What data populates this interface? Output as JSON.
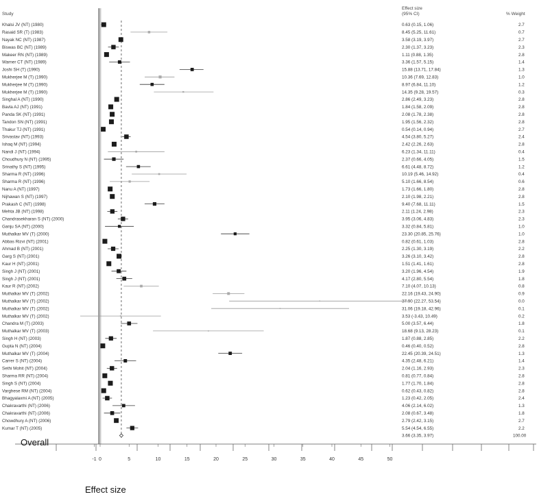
{
  "chart_data": {
    "type": "forest",
    "header": {
      "study": "Study",
      "effect": "Effect size",
      "ci": "(95% CI)",
      "weight": "% Weight"
    },
    "overall_label": "Overall",
    "xlabel": "Effect size",
    "xlim": [
      -1,
      51
    ],
    "xticks": [
      -1,
      0,
      5,
      10,
      15,
      20,
      25,
      30,
      35,
      40,
      45,
      50
    ],
    "reference_line": 0,
    "overall_line": 3.66,
    "studies": [
      {
        "name": "Khalsi JV (NT) (1980)",
        "est": 0.63,
        "lo": 0.15,
        "hi": 1.06,
        "ci": "0.63 (0.15, 1.06)",
        "w": "2.7"
      },
      {
        "name": "Rasaid SR (T) (1983)",
        "est": 8.45,
        "lo": 5.25,
        "hi": 11.61,
        "ci": "8.45 (5.25, 11.61)",
        "w": "0.7"
      },
      {
        "name": "Nayak NC (NT) (1987)",
        "est": 3.58,
        "lo": 3.19,
        "hi": 3.97,
        "ci": "3.58 (3.19, 3.97)",
        "w": "2.7"
      },
      {
        "name": "Biswas BC (NT) (1989)",
        "est": 2.3,
        "lo": 1.37,
        "hi": 3.23,
        "ci": "2.30 (1.37, 3.23)",
        "w": "2.3"
      },
      {
        "name": "Makeer RN (NT) (1989)",
        "est": 1.11,
        "lo": 0.88,
        "hi": 1.35,
        "ci": "1.11 (0.88, 1.35)",
        "w": "2.8"
      },
      {
        "name": "Warner CT (NT) (1989)",
        "est": 3.36,
        "lo": 1.57,
        "hi": 5.15,
        "ci": "3.36 (1.57, 5.15)",
        "w": "1.4"
      },
      {
        "name": "Joshi SH (T) (1990)",
        "est": 15.88,
        "lo": 13.71,
        "hi": 17.84,
        "ci": "15.88 (13.71, 17.84)",
        "w": "1.3"
      },
      {
        "name": "Mukherjee M (T) (1990)",
        "est": 10.36,
        "lo": 7.69,
        "hi": 12.83,
        "ci": "10.36 (7.69, 12.83)",
        "w": "1.0"
      },
      {
        "name": "Mukherjee M (T) (1990)",
        "est": 8.97,
        "lo": 6.84,
        "hi": 11.1,
        "ci": "8.97 (6.84, 11.10)",
        "w": "1.2"
      },
      {
        "name": "Mukherjee M (T) (1990)",
        "est": 14.35,
        "lo": 9.28,
        "hi": 19.57,
        "ci": "14.35 (9.28, 19.57)",
        "w": "0.3"
      },
      {
        "name": "Singhal A (NT) (1990)",
        "est": 2.86,
        "lo": 2.49,
        "hi": 3.23,
        "ci": "2.86 (2.49, 3.23)",
        "w": "2.8"
      },
      {
        "name": "Bavla AJ (NT) (1991)",
        "est": 1.84,
        "lo": 1.58,
        "hi": 2.09,
        "ci": "1.84 (1.58, 2.09)",
        "w": "2.8"
      },
      {
        "name": "Panda SK (NT) (1991)",
        "est": 2.08,
        "lo": 1.78,
        "hi": 2.38,
        "ci": "2.08 (1.78, 2.38)",
        "w": "2.8"
      },
      {
        "name": "Tandon SN (NT) (1991)",
        "est": 1.95,
        "lo": 1.56,
        "hi": 2.32,
        "ci": "1.95 (1.56, 2.32)",
        "w": "2.8"
      },
      {
        "name": "Thakur TJ (NT) (1991)",
        "est": 0.54,
        "lo": 0.14,
        "hi": 0.94,
        "ci": "0.54 (0.14, 0.94)",
        "w": "2.7"
      },
      {
        "name": "Srivastav (NT) (1993)",
        "est": 4.54,
        "lo": 3.8,
        "hi": 5.27,
        "ci": "4.54 (3.80, 5.27)",
        "w": "2.4"
      },
      {
        "name": "Ishaq M (NT) (1994)",
        "est": 2.42,
        "lo": 2.26,
        "hi": 2.63,
        "ci": "2.42 (2.26, 2.63)",
        "w": "2.8"
      },
      {
        "name": "Nandi J (NT) (1994)",
        "est": 6.23,
        "lo": 1.34,
        "hi": 11.11,
        "ci": "6.23 (1.34, 11.11)",
        "w": "0.4"
      },
      {
        "name": "Choudhury N (NT) (1995)",
        "est": 2.37,
        "lo": 0.66,
        "hi": 4.05,
        "ci": "2.37 (0.66, 4.05)",
        "w": "1.5"
      },
      {
        "name": "Srinathy S (NT) (1995)",
        "est": 6.61,
        "lo": 4.48,
        "hi": 8.72,
        "ci": "6.61 (4.48, 8.72)",
        "w": "1.2"
      },
      {
        "name": "Sharma R (NT) (1996)",
        "est": 10.19,
        "lo": 5.46,
        "hi": 14.92,
        "ci": "10.19 (5.46, 14.92)",
        "w": "0.4"
      },
      {
        "name": "Sharma R (NT) (1996)",
        "est": 5.1,
        "lo": 1.66,
        "hi": 8.54,
        "ci": "5.10 (1.66, 8.54)",
        "w": "0.6"
      },
      {
        "name": "Nanu A (NT) (1997)",
        "est": 1.73,
        "lo": 1.66,
        "hi": 1.8,
        "ci": "1.73 (1.66, 1.80)",
        "w": "2.8"
      },
      {
        "name": "Nijhawan S (NT) (1997)",
        "est": 2.1,
        "lo": 1.98,
        "hi": 2.21,
        "ci": "2.10 (1.98, 2.21)",
        "w": "2.8"
      },
      {
        "name": "Prakash C (NT) (1998)",
        "est": 9.4,
        "lo": 7.68,
        "hi": 11.11,
        "ci": "9.40 (7.68, 11.11)",
        "w": "1.5"
      },
      {
        "name": "Mehta JB (NT) (1998)",
        "est": 2.11,
        "lo": 1.24,
        "hi": 2.98,
        "ci": "2.11 (1.24, 2.98)",
        "w": "2.3"
      },
      {
        "name": "Chandrasekharan S (NT) (2000)",
        "est": 3.95,
        "lo": 3.06,
        "hi": 4.83,
        "ci": "3.95 (3.06, 4.83)",
        "w": "2.3"
      },
      {
        "name": "Ganju SA (NT) (2000)",
        "est": 3.32,
        "lo": 0.84,
        "hi": 5.81,
        "ci": "3.32 (0.84, 5.81)",
        "w": "1.0"
      },
      {
        "name": "Muthalkar MV (T) (2000)",
        "est": 23.3,
        "lo": 20.85,
        "hi": 25.76,
        "ci": "23.30 (20.85, 25.76)",
        "w": "1.0"
      },
      {
        "name": "Abbas Rizvi (NT) (2001)",
        "est": 0.82,
        "lo": 0.61,
        "hi": 1.03,
        "ci": "0.82 (0.61, 1.03)",
        "w": "2.8"
      },
      {
        "name": "Ahmad B (NT) (2001)",
        "est": 2.25,
        "lo": 1.3,
        "hi": 3.19,
        "ci": "2.25 (1.30, 3.19)",
        "w": "2.2"
      },
      {
        "name": "Garg S (NT) (2001)",
        "est": 3.26,
        "lo": 3.1,
        "hi": 3.42,
        "ci": "3.26 (3.10, 3.42)",
        "w": "2.8"
      },
      {
        "name": "Kaur H (NT) (2001)",
        "est": 1.51,
        "lo": 1.41,
        "hi": 1.61,
        "ci": "1.51 (1.41, 1.61)",
        "w": "2.8"
      },
      {
        "name": "Singh J (NT) (2001)",
        "est": 3.2,
        "lo": 1.96,
        "hi": 4.54,
        "ci": "3.20 (1.96, 4.54)",
        "w": "1.9"
      },
      {
        "name": "Singh J (NT) (2001)",
        "est": 4.17,
        "lo": 2.8,
        "hi": 5.54,
        "ci": "4.17 (2.80, 5.54)",
        "w": "1.8"
      },
      {
        "name": "Kaur R (NT) (2002)",
        "est": 7.1,
        "lo": 4.07,
        "hi": 10.13,
        "ci": "7.10 (4.07, 10.13)",
        "w": "0.8"
      },
      {
        "name": "Muthalkar MV (T) (2002)",
        "est": 22.16,
        "lo": 19.43,
        "hi": 24.9,
        "ci": "22.16 (19.43, 24.90)",
        "w": "0.9"
      },
      {
        "name": "Muthalkar MV (T) (2002)",
        "est": 37.9,
        "lo": 22.27,
        "hi": 53.54,
        "ci": "37.90 (22.27, 53.54)",
        "w": "0.0"
      },
      {
        "name": "Muthalkar MV (T) (2002)",
        "est": 31.06,
        "lo": 19.18,
        "hi": 42.96,
        "ci": "31.06 (19.18, 42.96)",
        "w": "0.1"
      },
      {
        "name": "Muthalkar MV (T) (2002)",
        "est": 3.53,
        "lo": -3.43,
        "hi": 10.49,
        "ci": "3.53 (-3.43, 10.49)",
        "w": "0.2"
      },
      {
        "name": "Chandra M (T) (2003)",
        "est": 5.0,
        "lo": 3.57,
        "hi": 6.44,
        "ci": "5.00 (3.57, 6.44)",
        "w": "1.8"
      },
      {
        "name": "Muthalkar MV (T) (2003)",
        "est": 18.68,
        "lo": 9.13,
        "hi": 28.23,
        "ci": "18.68 (9.13, 28.23)",
        "w": "0.1"
      },
      {
        "name": "Singh H (NT) (2003)",
        "est": 1.87,
        "lo": 0.88,
        "hi": 2.85,
        "ci": "1.87 (0.88, 2.85)",
        "w": "2.2"
      },
      {
        "name": "Gupta N (NT) (2004)",
        "est": 0.46,
        "lo": 0.4,
        "hi": 0.52,
        "ci": "0.46 (0.40, 0.52)",
        "w": "2.8"
      },
      {
        "name": "Muthalkar MV (T) (2004)",
        "est": 22.45,
        "lo": 20.39,
        "hi": 24.51,
        "ci": "22.45 (20.39, 24.51)",
        "w": "1.3"
      },
      {
        "name": "Carrer S (NT) (2004)",
        "est": 4.35,
        "lo": 2.48,
        "hi": 6.21,
        "ci": "4.35 (2.48, 6.21)",
        "w": "1.4"
      },
      {
        "name": "Sethi Mohit (NT) (2004)",
        "est": 2.04,
        "lo": 1.16,
        "hi": 2.93,
        "ci": "2.04 (1.16, 2.93)",
        "w": "2.3"
      },
      {
        "name": "Sharma RR (NT) (2004)",
        "est": 0.81,
        "lo": 0.77,
        "hi": 0.84,
        "ci": "0.81 (0.77, 0.84)",
        "w": "2.8"
      },
      {
        "name": "Singh S (NT) (2004)",
        "est": 1.77,
        "lo": 1.7,
        "hi": 1.84,
        "ci": "1.77 (1.70, 1.84)",
        "w": "2.8"
      },
      {
        "name": "Varghese RM (NT) (2004)",
        "est": 0.62,
        "lo": 0.43,
        "hi": 0.82,
        "ci": "0.62 (0.43, 0.82)",
        "w": "2.8"
      },
      {
        "name": "Bhagyalaxmi A (NT) (2005)",
        "est": 1.23,
        "lo": 0.42,
        "hi": 2.05,
        "ci": "1.23 (0.42, 2.05)",
        "w": "2.4"
      },
      {
        "name": "Chakravarthi (NT) (2006)",
        "est": 4.06,
        "lo": 2.14,
        "hi": 6.02,
        "ci": "4.06 (2.14, 6.02)",
        "w": "1.3"
      },
      {
        "name": "Chakravarthi (NT) (2006)",
        "est": 2.08,
        "lo": 0.67,
        "hi": 3.48,
        "ci": "2.08 (0.67, 3.48)",
        "w": "1.8"
      },
      {
        "name": "Chowdhury A (NT) (2006)",
        "est": 2.79,
        "lo": 2.42,
        "hi": 3.15,
        "ci": "2.79 (2.42, 3.15)",
        "w": "2.7"
      },
      {
        "name": "Kumar T (NT) (2005)",
        "est": 5.54,
        "lo": 4.54,
        "hi": 6.55,
        "ci": "5.54 (4.54, 6.55)",
        "w": "2.2"
      }
    ],
    "overall": {
      "est": 3.66,
      "lo": 3.35,
      "hi": 3.97,
      "ci": "3.66 (3.35, 3.97)",
      "w": "100.00"
    }
  }
}
